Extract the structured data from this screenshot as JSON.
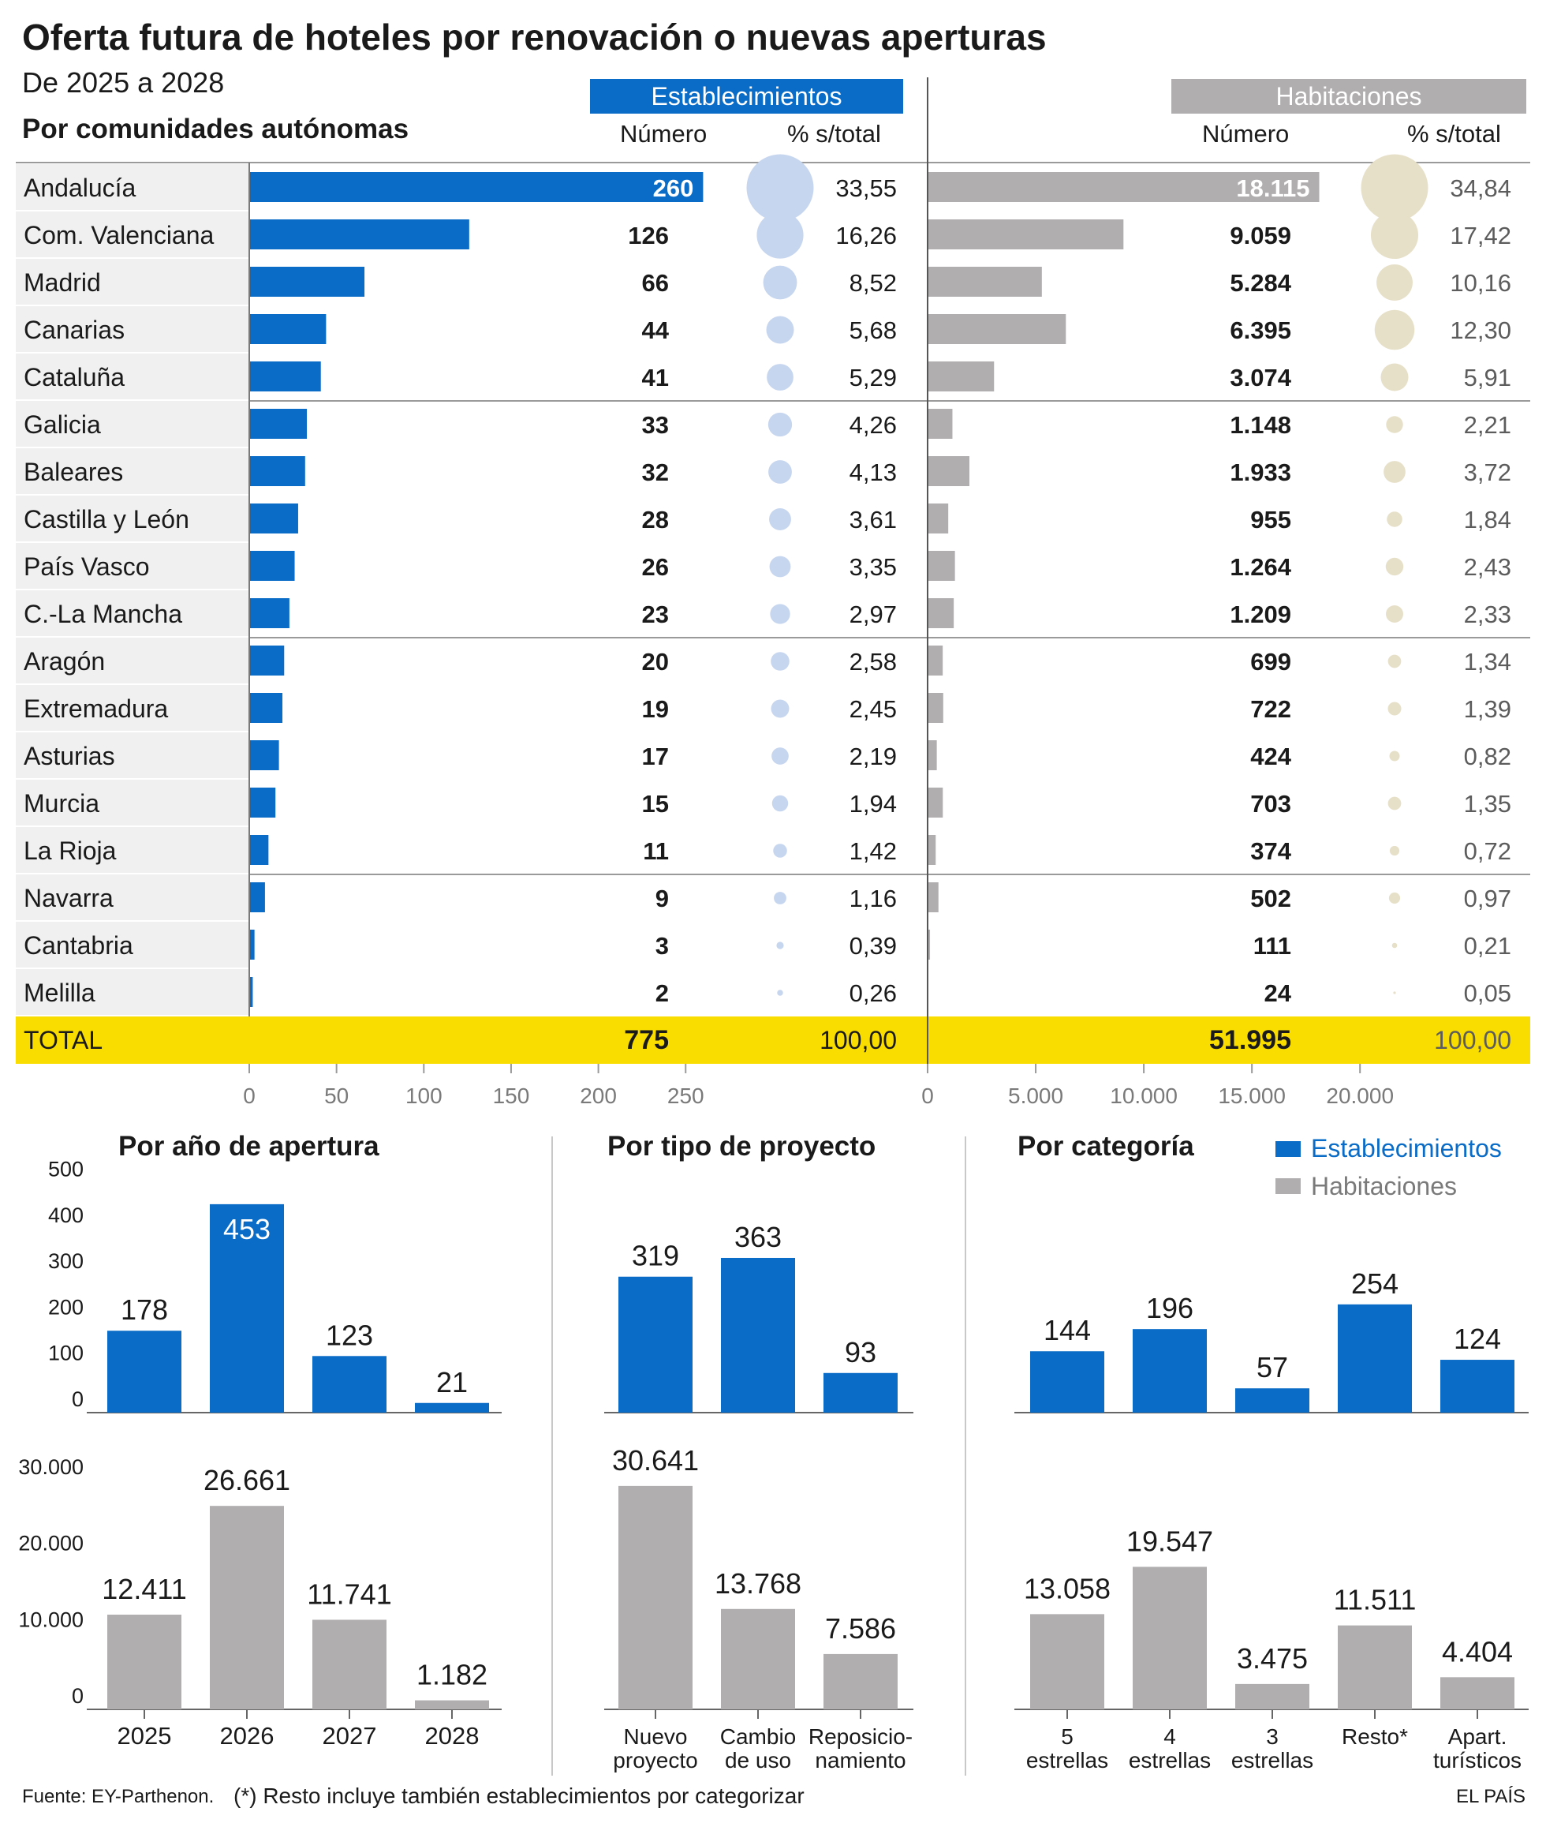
{
  "title": "Oferta futura de hoteles por renovación o nuevas aperturas",
  "subtitle": "De 2025 a 2028",
  "section_ccaa": "Por comunidades autónomas",
  "headers": {
    "establecimientos": "Establecimientos",
    "habitaciones": "Habitaciones",
    "numero": "Número",
    "pct": "% s/total"
  },
  "colors": {
    "blue": "#0a6cc7",
    "gray": "#b1aeb0",
    "blue_circle": "#c7d6ef",
    "tan_circle": "#e7e0c9",
    "total": "#f9dd00"
  },
  "chart_data": [
    {
      "type": "table",
      "title": "Por comunidades autónomas",
      "columns": [
        "Establecimientos Número",
        "Establecimientos % s/total",
        "Habitaciones Número",
        "Habitaciones % s/total"
      ],
      "rows": [
        {
          "name": "Andalucía",
          "est": 260,
          "est_label": "260",
          "est_pct": 33.55,
          "est_pct_label": "33,55",
          "hab": 18115,
          "hab_label": "18.115",
          "hab_pct": 34.84,
          "hab_pct_label": "34,84"
        },
        {
          "name": "Com. Valenciana",
          "est": 126,
          "est_label": "126",
          "est_pct": 16.26,
          "est_pct_label": "16,26",
          "hab": 9059,
          "hab_label": "9.059",
          "hab_pct": 17.42,
          "hab_pct_label": "17,42"
        },
        {
          "name": "Madrid",
          "est": 66,
          "est_label": "66",
          "est_pct": 8.52,
          "est_pct_label": "8,52",
          "hab": 5284,
          "hab_label": "5.284",
          "hab_pct": 10.16,
          "hab_pct_label": "10,16"
        },
        {
          "name": "Canarias",
          "est": 44,
          "est_label": "44",
          "est_pct": 5.68,
          "est_pct_label": "5,68",
          "hab": 6395,
          "hab_label": "6.395",
          "hab_pct": 12.3,
          "hab_pct_label": "12,30"
        },
        {
          "name": "Cataluña",
          "est": 41,
          "est_label": "41",
          "est_pct": 5.29,
          "est_pct_label": "5,29",
          "hab": 3074,
          "hab_label": "3.074",
          "hab_pct": 5.91,
          "hab_pct_label": "5,91"
        },
        {
          "name": "Galicia",
          "est": 33,
          "est_label": "33",
          "est_pct": 4.26,
          "est_pct_label": "4,26",
          "hab": 1148,
          "hab_label": "1.148",
          "hab_pct": 2.21,
          "hab_pct_label": "2,21"
        },
        {
          "name": "Baleares",
          "est": 32,
          "est_label": "32",
          "est_pct": 4.13,
          "est_pct_label": "4,13",
          "hab": 1933,
          "hab_label": "1.933",
          "hab_pct": 3.72,
          "hab_pct_label": "3,72"
        },
        {
          "name": "Castilla y León",
          "est": 28,
          "est_label": "28",
          "est_pct": 3.61,
          "est_pct_label": "3,61",
          "hab": 955,
          "hab_label": "955",
          "hab_pct": 1.84,
          "hab_pct_label": "1,84"
        },
        {
          "name": "País Vasco",
          "est": 26,
          "est_label": "26",
          "est_pct": 3.35,
          "est_pct_label": "3,35",
          "hab": 1264,
          "hab_label": "1.264",
          "hab_pct": 2.43,
          "hab_pct_label": "2,43"
        },
        {
          "name": "C.-La Mancha",
          "est": 23,
          "est_label": "23",
          "est_pct": 2.97,
          "est_pct_label": "2,97",
          "hab": 1209,
          "hab_label": "1.209",
          "hab_pct": 2.33,
          "hab_pct_label": "2,33"
        },
        {
          "name": "Aragón",
          "est": 20,
          "est_label": "20",
          "est_pct": 2.58,
          "est_pct_label": "2,58",
          "hab": 699,
          "hab_label": "699",
          "hab_pct": 1.34,
          "hab_pct_label": "1,34"
        },
        {
          "name": "Extremadura",
          "est": 19,
          "est_label": "19",
          "est_pct": 2.45,
          "est_pct_label": "2,45",
          "hab": 722,
          "hab_label": "722",
          "hab_pct": 1.39,
          "hab_pct_label": "1,39"
        },
        {
          "name": "Asturias",
          "est": 17,
          "est_label": "17",
          "est_pct": 2.19,
          "est_pct_label": "2,19",
          "hab": 424,
          "hab_label": "424",
          "hab_pct": 0.82,
          "hab_pct_label": "0,82"
        },
        {
          "name": "Murcia",
          "est": 15,
          "est_label": "15",
          "est_pct": 1.94,
          "est_pct_label": "1,94",
          "hab": 703,
          "hab_label": "703",
          "hab_pct": 1.35,
          "hab_pct_label": "1,35"
        },
        {
          "name": "La Rioja",
          "est": 11,
          "est_label": "11",
          "est_pct": 1.42,
          "est_pct_label": "1,42",
          "hab": 374,
          "hab_label": "374",
          "hab_pct": 0.72,
          "hab_pct_label": "0,72"
        },
        {
          "name": "Navarra",
          "est": 9,
          "est_label": "9",
          "est_pct": 1.16,
          "est_pct_label": "1,16",
          "hab": 502,
          "hab_label": "502",
          "hab_pct": 0.97,
          "hab_pct_label": "0,97"
        },
        {
          "name": "Cantabria",
          "est": 3,
          "est_label": "3",
          "est_pct": 0.39,
          "est_pct_label": "0,39",
          "hab": 111,
          "hab_label": "111",
          "hab_pct": 0.21,
          "hab_pct_label": "0,21"
        },
        {
          "name": "Melilla",
          "est": 2,
          "est_label": "2",
          "est_pct": 0.26,
          "est_pct_label": "0,26",
          "hab": 24,
          "hab_label": "24",
          "hab_pct": 0.05,
          "hab_pct_label": "0,05"
        }
      ],
      "total": {
        "name": "TOTAL",
        "est_label": "775",
        "est_pct_label": "100,00",
        "hab_label": "51.995",
        "hab_pct_label": "100,00"
      },
      "est_axis": {
        "ticks": [
          0,
          50,
          100,
          150,
          200,
          250
        ],
        "tick_labels": [
          "0",
          "50",
          "100",
          "150",
          "200",
          "250"
        ]
      },
      "hab_axis": {
        "ticks": [
          0,
          5000,
          10000,
          15000,
          20000
        ],
        "tick_labels": [
          "0",
          "5.000",
          "10.000",
          "15.000",
          "20.000"
        ]
      }
    },
    {
      "type": "bar",
      "title": "Por año de apertura",
      "categories": [
        "2025",
        "2026",
        "2027",
        "2028"
      ],
      "series": [
        {
          "name": "Establecimientos",
          "values": [
            178,
            453,
            123,
            21
          ],
          "labels": [
            "178",
            "453",
            "123",
            "21"
          ]
        },
        {
          "name": "Habitaciones",
          "values": [
            12411,
            26661,
            11741,
            1182
          ],
          "labels": [
            "12.411",
            "26.661",
            "11.741",
            "1.182"
          ]
        }
      ],
      "est_axis": {
        "ylim": [
          0,
          500
        ],
        "ticks": [
          0,
          100,
          200,
          300,
          400,
          500
        ],
        "tick_labels": [
          "0",
          "100",
          "200",
          "300",
          "400",
          "500"
        ]
      },
      "hab_axis": {
        "ylim": [
          0,
          30000
        ],
        "ticks": [
          0,
          10000,
          20000,
          30000
        ],
        "tick_labels": [
          "0",
          "10.000",
          "20.000",
          "30.000"
        ]
      }
    },
    {
      "type": "bar",
      "title": "Por tipo de proyecto",
      "categories": [
        [
          "Nuevo",
          "proyecto"
        ],
        [
          "Cambio",
          "de uso"
        ],
        [
          "Reposicio-",
          "namiento"
        ]
      ],
      "series": [
        {
          "name": "Establecimientos",
          "values": [
            319,
            363,
            93
          ],
          "labels": [
            "319",
            "363",
            "93"
          ]
        },
        {
          "name": "Habitaciones",
          "values": [
            30641,
            13768,
            7586
          ],
          "labels": [
            "30.641",
            "13.768",
            "7.586"
          ]
        }
      ]
    },
    {
      "type": "bar",
      "title": "Por categoría",
      "categories": [
        [
          "5",
          "estrellas"
        ],
        [
          "4",
          "estrellas"
        ],
        [
          "3",
          "estrellas"
        ],
        [
          "Resto*"
        ],
        [
          "Apart.",
          "turísticos"
        ]
      ],
      "series": [
        {
          "name": "Establecimientos",
          "values": [
            144,
            196,
            57,
            254,
            124
          ],
          "labels": [
            "144",
            "196",
            "57",
            "254",
            "124"
          ]
        },
        {
          "name": "Habitaciones",
          "values": [
            13058,
            19547,
            3475,
            11511,
            4404
          ],
          "labels": [
            "13.058",
            "19.547",
            "3.475",
            "11.511",
            "4.404"
          ]
        }
      ],
      "legend": [
        "Establecimientos",
        "Habitaciones"
      ],
      "legend_position": "top-right"
    }
  ],
  "footer": {
    "source": "Fuente: EY-Parthenon.",
    "note": "(*) Resto incluye también establecimientos por categorizar",
    "brand": "EL PAÍS"
  }
}
